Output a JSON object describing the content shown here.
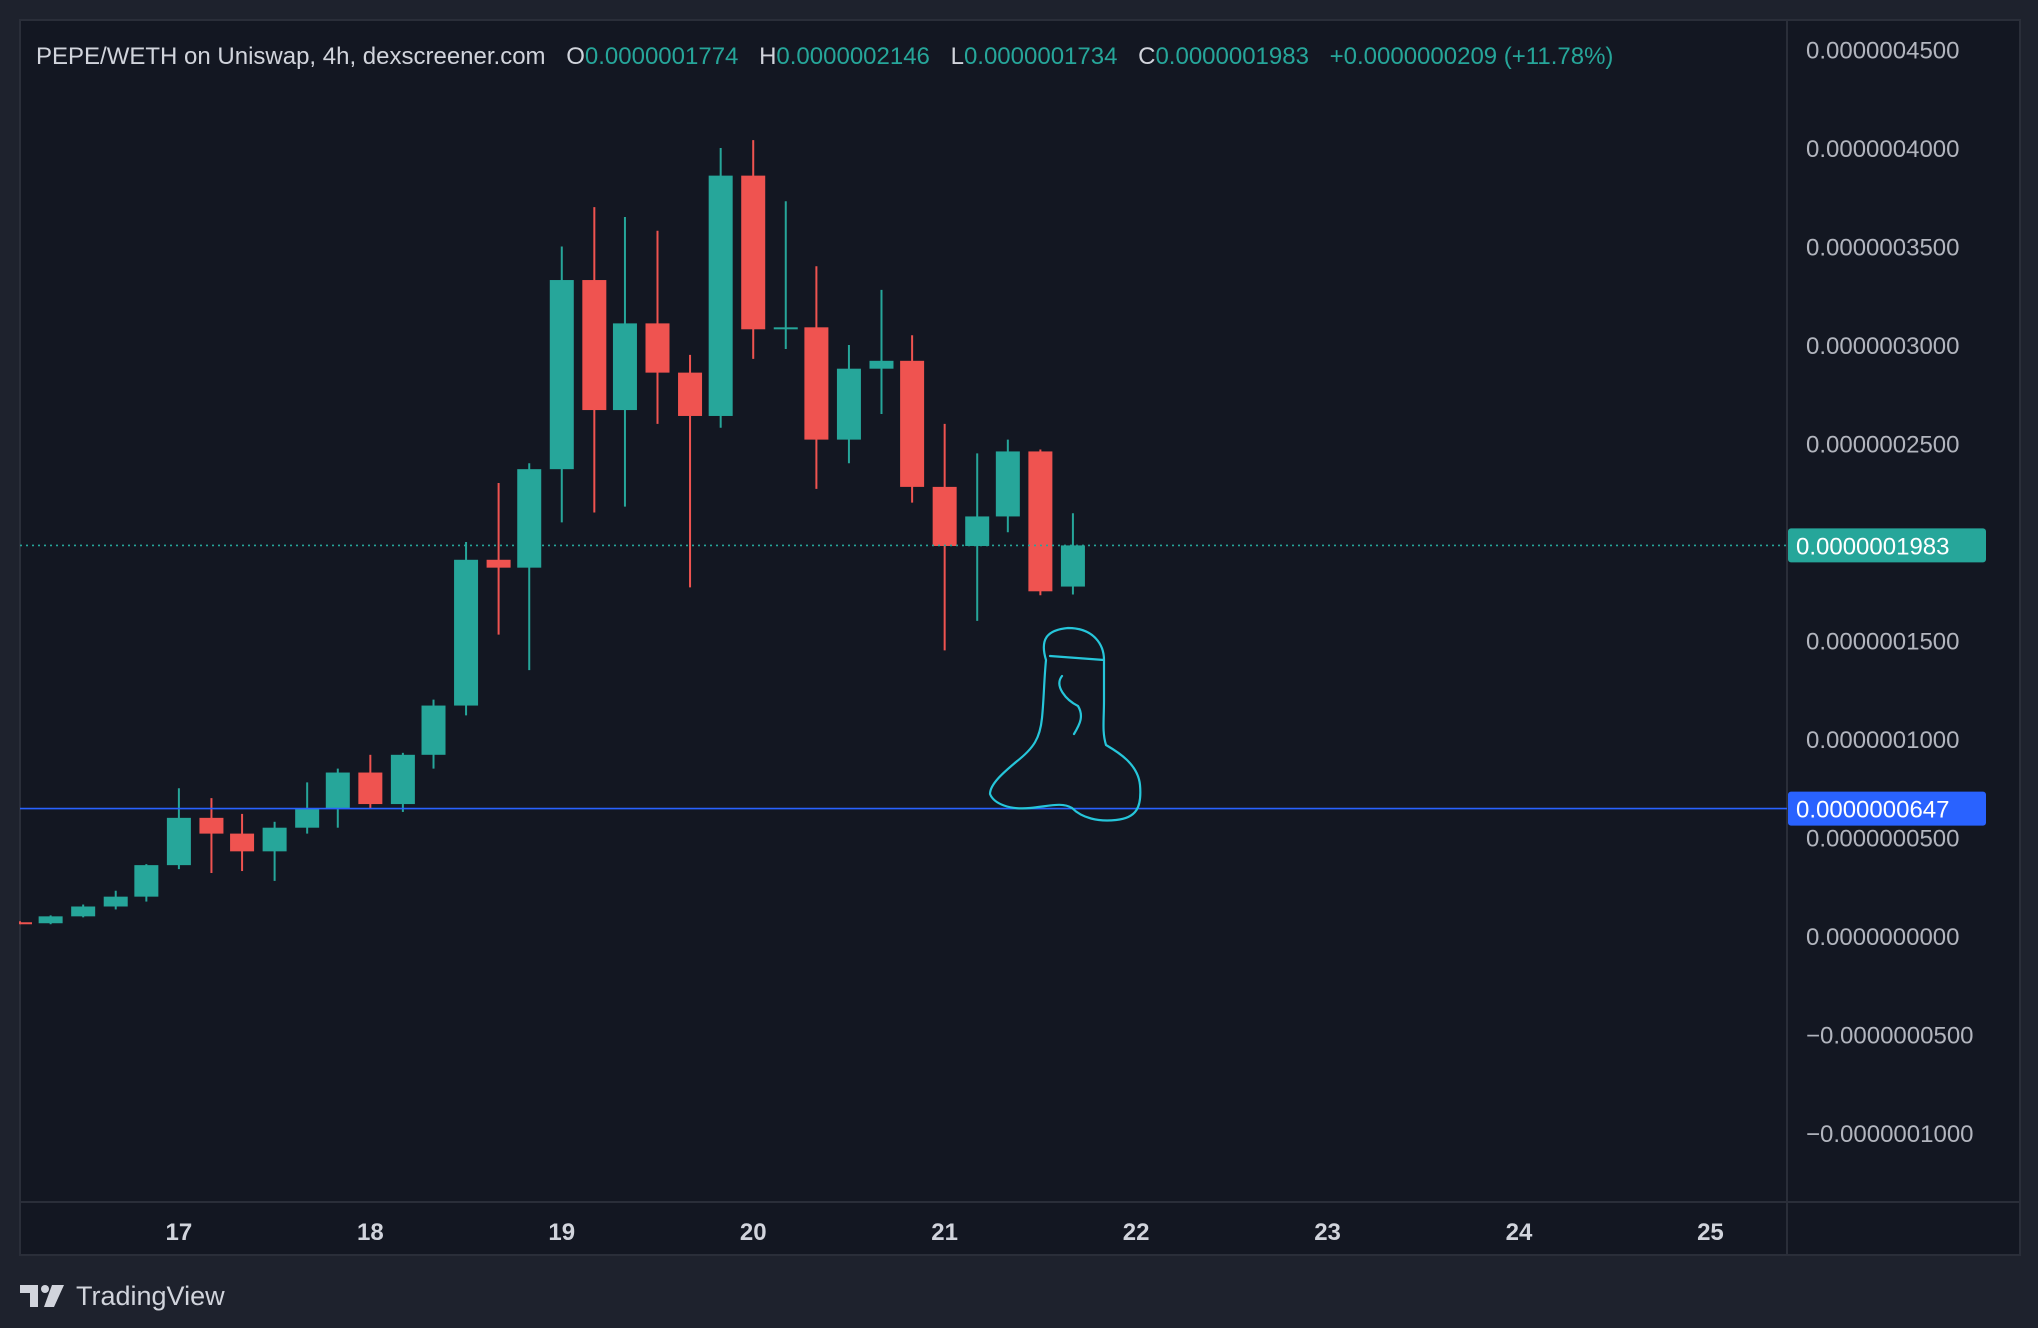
{
  "chart_data": {
    "type": "candlestick",
    "title": "PEPE/WETH on Uniswap, 4h, dexscreener.com",
    "ohlc_labels": {
      "o_key": "O",
      "o_val": "0.0000001774",
      "h_key": "H",
      "h_val": "0.0000002146",
      "l_key": "L",
      "l_val": "0.0000001734",
      "c_key": "C",
      "c_val": "0.0000001983",
      "change": "+0.0000000209 (+11.78%)"
    },
    "y_axis": {
      "min": -1.35e-07,
      "max": 4.65e-07,
      "ticks": [
        4.5e-07,
        4e-07,
        3.5e-07,
        3e-07,
        2.5e-07,
        1.5e-07,
        1e-07,
        5e-08,
        0,
        -5e-08,
        -1e-07
      ],
      "tick_labels": [
        "0.0000004500",
        "0.0000004000",
        "0.0000003500",
        "0.0000003000",
        "0.0000002500",
        "0.0000001500",
        "0.0000001000",
        "0.0000000500",
        "0.0000000000",
        "−0.0000000500",
        "−0.0000001000"
      ]
    },
    "x_axis": {
      "min": 16.17,
      "max": 25.4,
      "ticks": [
        17,
        18,
        19,
        20,
        21,
        22,
        23,
        24,
        25
      ],
      "tick_labels": [
        "17",
        "18",
        "19",
        "20",
        "21",
        "22",
        "23",
        "24",
        "25"
      ]
    },
    "candles": [
      {
        "t": 16.17,
        "o": 7e-09,
        "h": 7.5e-09,
        "l": 6e-09,
        "c": 6.5e-09
      },
      {
        "t": 16.33,
        "o": 6.5e-09,
        "h": 1.05e-08,
        "l": 6e-09,
        "c": 1e-08
      },
      {
        "t": 16.5,
        "o": 1e-08,
        "h": 1.6e-08,
        "l": 9.5e-09,
        "c": 1.5e-08
      },
      {
        "t": 16.67,
        "o": 1.5e-08,
        "h": 2.3e-08,
        "l": 1.35e-08,
        "c": 2e-08
      },
      {
        "t": 16.83,
        "o": 2e-08,
        "h": 3.65e-08,
        "l": 1.75e-08,
        "c": 3.6e-08
      },
      {
        "t": 17.0,
        "o": 3.6e-08,
        "h": 7.5e-08,
        "l": 3.4e-08,
        "c": 6e-08
      },
      {
        "t": 17.17,
        "o": 6e-08,
        "h": 7e-08,
        "l": 3.2e-08,
        "c": 5.2e-08
      },
      {
        "t": 17.33,
        "o": 5.2e-08,
        "h": 6.2e-08,
        "l": 3.3e-08,
        "c": 4.3e-08
      },
      {
        "t": 17.5,
        "o": 4.3e-08,
        "h": 5.8e-08,
        "l": 2.8e-08,
        "c": 5.5e-08
      },
      {
        "t": 17.67,
        "o": 5.5e-08,
        "h": 7.8e-08,
        "l": 5.2e-08,
        "c": 6.5e-08
      },
      {
        "t": 17.83,
        "o": 6.5e-08,
        "h": 8.5e-08,
        "l": 5.5e-08,
        "c": 8.3e-08
      },
      {
        "t": 18.0,
        "o": 8.3e-08,
        "h": 9.2e-08,
        "l": 6.5e-08,
        "c": 6.7e-08
      },
      {
        "t": 18.17,
        "o": 6.7e-08,
        "h": 9.3e-08,
        "l": 6.3e-08,
        "c": 9.2e-08
      },
      {
        "t": 18.33,
        "o": 9.2e-08,
        "h": 1.2e-07,
        "l": 8.5e-08,
        "c": 1.17e-07
      },
      {
        "t": 18.5,
        "o": 1.17e-07,
        "h": 2e-07,
        "l": 1.12e-07,
        "c": 1.91e-07
      },
      {
        "t": 18.67,
        "o": 1.91e-07,
        "h": 2.3e-07,
        "l": 1.53e-07,
        "c": 1.87e-07
      },
      {
        "t": 18.83,
        "o": 1.87e-07,
        "h": 2.4e-07,
        "l": 1.35e-07,
        "c": 2.37e-07
      },
      {
        "t": 19.0,
        "o": 2.37e-07,
        "h": 3.5e-07,
        "l": 2.1e-07,
        "c": 3.33e-07
      },
      {
        "t": 19.17,
        "o": 3.33e-07,
        "h": 3.7e-07,
        "l": 2.15e-07,
        "c": 2.67e-07
      },
      {
        "t": 19.33,
        "o": 2.67e-07,
        "h": 3.65e-07,
        "l": 2.18e-07,
        "c": 3.11e-07
      },
      {
        "t": 19.5,
        "o": 3.11e-07,
        "h": 3.58e-07,
        "l": 2.6e-07,
        "c": 2.86e-07
      },
      {
        "t": 19.67,
        "o": 2.86e-07,
        "h": 2.95e-07,
        "l": 1.77e-07,
        "c": 2.64e-07
      },
      {
        "t": 19.83,
        "o": 2.64e-07,
        "h": 4e-07,
        "l": 2.58e-07,
        "c": 3.86e-07
      },
      {
        "t": 20.0,
        "o": 3.86e-07,
        "h": 4.04e-07,
        "l": 2.93e-07,
        "c": 3.08e-07
      },
      {
        "t": 20.17,
        "o": 3.08e-07,
        "h": 3.73e-07,
        "l": 2.98e-07,
        "c": 3.09e-07
      },
      {
        "t": 20.33,
        "o": 3.09e-07,
        "h": 3.4e-07,
        "l": 2.27e-07,
        "c": 2.52e-07
      },
      {
        "t": 20.5,
        "o": 2.52e-07,
        "h": 3e-07,
        "l": 2.4e-07,
        "c": 2.88e-07
      },
      {
        "t": 20.67,
        "o": 2.88e-07,
        "h": 3.28e-07,
        "l": 2.65e-07,
        "c": 2.92e-07
      },
      {
        "t": 20.83,
        "o": 2.92e-07,
        "h": 3.05e-07,
        "l": 2.2e-07,
        "c": 2.28e-07
      },
      {
        "t": 21.0,
        "o": 2.28e-07,
        "h": 2.6e-07,
        "l": 1.45e-07,
        "c": 1.98e-07
      },
      {
        "t": 21.17,
        "o": 1.98e-07,
        "h": 2.45e-07,
        "l": 1.6e-07,
        "c": 2.13e-07
      },
      {
        "t": 21.33,
        "o": 2.13e-07,
        "h": 2.52e-07,
        "l": 2.05e-07,
        "c": 2.46e-07
      },
      {
        "t": 21.5,
        "o": 2.46e-07,
        "h": 2.47e-07,
        "l": 1.73e-07,
        "c": 1.75e-07
      },
      {
        "t": 21.67,
        "o": 1.774e-07,
        "h": 2.146e-07,
        "l": 1.734e-07,
        "c": 1.983e-07
      }
    ],
    "price_lines": [
      {
        "value": 1.983e-07,
        "label": "0.0000001983",
        "style": "dotted",
        "color": "#26a69a"
      },
      {
        "value": 6.47e-08,
        "label": "0.0000000647",
        "style": "solid",
        "color": "#2962ff"
      }
    ],
    "drawing": {
      "type": "freehand",
      "color": "#26c6da"
    },
    "colors": {
      "up": "#26a69a",
      "down": "#ef5350",
      "background": "#131722",
      "outer": "#1e222d",
      "grid": "#2a2e39"
    },
    "grid": false,
    "legend": "top-left"
  },
  "footer": {
    "brand": "TradingView",
    "logo": "tradingview-logo-icon"
  }
}
